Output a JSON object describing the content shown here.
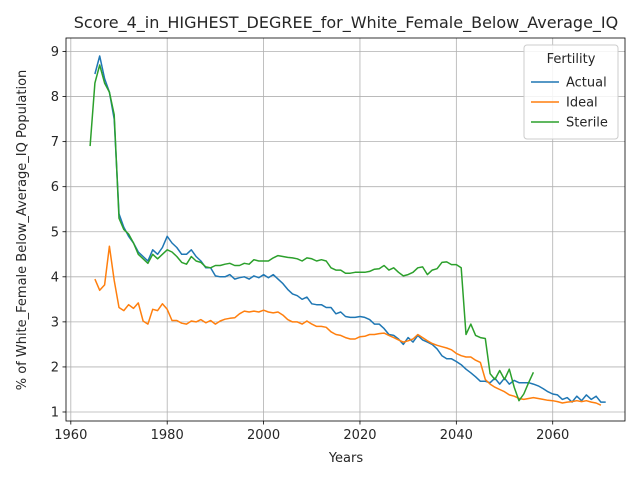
{
  "chart_data": {
    "type": "line",
    "title": "Score_4_in_HIGHEST_DEGREE_for_White_Female_Below_Average_IQ",
    "xlabel": "Years",
    "ylabel": "% of White_Female Below_Average_IQ Population",
    "xlim": [
      1959,
      2075
    ],
    "ylim": [
      0.8,
      9.3
    ],
    "xticks": [
      1960,
      1980,
      2000,
      2020,
      2040,
      2060
    ],
    "yticks": [
      1,
      2,
      3,
      4,
      5,
      6,
      7,
      8,
      9
    ],
    "grid": true,
    "legend": {
      "title": "Fertility",
      "position": "top-right"
    },
    "series": [
      {
        "name": "Actual",
        "color": "#1f77b4",
        "points": [
          [
            1965,
            8.5
          ],
          [
            1966,
            8.9
          ],
          [
            1967,
            8.4
          ],
          [
            1968,
            8.1
          ],
          [
            1969,
            7.5
          ],
          [
            1970,
            5.4
          ],
          [
            1971,
            5.1
          ],
          [
            1972,
            4.9
          ],
          [
            1973,
            4.75
          ],
          [
            1974,
            4.55
          ],
          [
            1975,
            4.45
          ],
          [
            1976,
            4.35
          ],
          [
            1977,
            4.6
          ],
          [
            1978,
            4.5
          ],
          [
            1979,
            4.65
          ],
          [
            1980,
            4.9
          ],
          [
            1981,
            4.75
          ],
          [
            1982,
            4.65
          ],
          [
            1983,
            4.5
          ],
          [
            1984,
            4.5
          ],
          [
            1985,
            4.6
          ],
          [
            1986,
            4.45
          ],
          [
            1987,
            4.35
          ],
          [
            1988,
            4.2
          ],
          [
            1989,
            4.2
          ],
          [
            1990,
            4.02
          ],
          [
            1991,
            4.0
          ],
          [
            1992,
            4.0
          ],
          [
            1993,
            4.05
          ],
          [
            1994,
            3.95
          ],
          [
            1995,
            3.98
          ],
          [
            1996,
            4.0
          ],
          [
            1997,
            3.95
          ],
          [
            1998,
            4.02
          ],
          [
            1999,
            3.98
          ],
          [
            2000,
            4.05
          ],
          [
            2001,
            3.98
          ],
          [
            2002,
            4.05
          ],
          [
            2003,
            3.95
          ],
          [
            2004,
            3.85
          ],
          [
            2005,
            3.72
          ],
          [
            2006,
            3.62
          ],
          [
            2007,
            3.58
          ],
          [
            2008,
            3.5
          ],
          [
            2009,
            3.55
          ],
          [
            2010,
            3.4
          ],
          [
            2011,
            3.38
          ],
          [
            2012,
            3.38
          ],
          [
            2013,
            3.32
          ],
          [
            2014,
            3.32
          ],
          [
            2015,
            3.18
          ],
          [
            2016,
            3.22
          ],
          [
            2017,
            3.12
          ],
          [
            2018,
            3.1
          ],
          [
            2019,
            3.1
          ],
          [
            2020,
            3.12
          ],
          [
            2021,
            3.1
          ],
          [
            2022,
            3.05
          ],
          [
            2023,
            2.95
          ],
          [
            2024,
            2.95
          ],
          [
            2025,
            2.85
          ],
          [
            2026,
            2.72
          ],
          [
            2027,
            2.7
          ],
          [
            2028,
            2.62
          ],
          [
            2029,
            2.5
          ],
          [
            2030,
            2.65
          ],
          [
            2031,
            2.55
          ],
          [
            2032,
            2.7
          ],
          [
            2033,
            2.6
          ],
          [
            2034,
            2.55
          ],
          [
            2035,
            2.5
          ],
          [
            2036,
            2.4
          ],
          [
            2037,
            2.25
          ],
          [
            2038,
            2.18
          ],
          [
            2039,
            2.18
          ],
          [
            2040,
            2.12
          ],
          [
            2041,
            2.05
          ],
          [
            2042,
            1.95
          ],
          [
            2043,
            1.87
          ],
          [
            2044,
            1.78
          ],
          [
            2045,
            1.68
          ],
          [
            2046,
            1.68
          ],
          [
            2047,
            1.65
          ],
          [
            2048,
            1.75
          ],
          [
            2049,
            1.62
          ],
          [
            2050,
            1.75
          ],
          [
            2051,
            1.62
          ],
          [
            2052,
            1.7
          ],
          [
            2053,
            1.65
          ],
          [
            2054,
            1.65
          ],
          [
            2055,
            1.65
          ],
          [
            2056,
            1.62
          ],
          [
            2057,
            1.58
          ],
          [
            2058,
            1.52
          ],
          [
            2059,
            1.45
          ],
          [
            2060,
            1.4
          ],
          [
            2061,
            1.38
          ],
          [
            2062,
            1.28
          ],
          [
            2063,
            1.32
          ],
          [
            2064,
            1.22
          ],
          [
            2065,
            1.35
          ],
          [
            2066,
            1.25
          ],
          [
            2067,
            1.38
          ],
          [
            2068,
            1.28
          ],
          [
            2069,
            1.35
          ],
          [
            2070,
            1.22
          ],
          [
            2071,
            1.22
          ]
        ]
      },
      {
        "name": "Ideal",
        "color": "#ff7f0e",
        "points": [
          [
            1965,
            3.95
          ],
          [
            1966,
            3.7
          ],
          [
            1967,
            3.82
          ],
          [
            1968,
            4.68
          ],
          [
            1969,
            3.92
          ],
          [
            1970,
            3.32
          ],
          [
            1971,
            3.25
          ],
          [
            1972,
            3.38
          ],
          [
            1973,
            3.3
          ],
          [
            1974,
            3.42
          ],
          [
            1975,
            3.02
          ],
          [
            1976,
            2.95
          ],
          [
            1977,
            3.28
          ],
          [
            1978,
            3.25
          ],
          [
            1979,
            3.4
          ],
          [
            1980,
            3.28
          ],
          [
            1981,
            3.03
          ],
          [
            1982,
            3.03
          ],
          [
            1983,
            2.97
          ],
          [
            1984,
            2.95
          ],
          [
            1985,
            3.02
          ],
          [
            1986,
            3.0
          ],
          [
            1987,
            3.05
          ],
          [
            1988,
            2.98
          ],
          [
            1989,
            3.03
          ],
          [
            1990,
            2.95
          ],
          [
            1991,
            3.02
          ],
          [
            1992,
            3.06
          ],
          [
            1993,
            3.08
          ],
          [
            1994,
            3.09
          ],
          [
            1995,
            3.18
          ],
          [
            1996,
            3.24
          ],
          [
            1997,
            3.22
          ],
          [
            1998,
            3.24
          ],
          [
            1999,
            3.22
          ],
          [
            2000,
            3.26
          ],
          [
            2001,
            3.22
          ],
          [
            2002,
            3.2
          ],
          [
            2003,
            3.22
          ],
          [
            2004,
            3.15
          ],
          [
            2005,
            3.05
          ],
          [
            2006,
            3.0
          ],
          [
            2007,
            3.0
          ],
          [
            2008,
            2.95
          ],
          [
            2009,
            3.02
          ],
          [
            2010,
            2.95
          ],
          [
            2011,
            2.9
          ],
          [
            2012,
            2.9
          ],
          [
            2013,
            2.88
          ],
          [
            2014,
            2.78
          ],
          [
            2015,
            2.72
          ],
          [
            2016,
            2.7
          ],
          [
            2017,
            2.65
          ],
          [
            2018,
            2.62
          ],
          [
            2019,
            2.62
          ],
          [
            2020,
            2.67
          ],
          [
            2021,
            2.68
          ],
          [
            2022,
            2.72
          ],
          [
            2023,
            2.72
          ],
          [
            2024,
            2.74
          ],
          [
            2025,
            2.75
          ],
          [
            2026,
            2.7
          ],
          [
            2027,
            2.65
          ],
          [
            2028,
            2.6
          ],
          [
            2029,
            2.55
          ],
          [
            2030,
            2.58
          ],
          [
            2031,
            2.62
          ],
          [
            2032,
            2.72
          ],
          [
            2033,
            2.65
          ],
          [
            2034,
            2.58
          ],
          [
            2035,
            2.52
          ],
          [
            2036,
            2.48
          ],
          [
            2037,
            2.45
          ],
          [
            2038,
            2.42
          ],
          [
            2039,
            2.38
          ],
          [
            2040,
            2.3
          ],
          [
            2041,
            2.25
          ],
          [
            2042,
            2.22
          ],
          [
            2043,
            2.22
          ],
          [
            2044,
            2.15
          ],
          [
            2045,
            2.1
          ],
          [
            2046,
            1.72
          ],
          [
            2047,
            1.62
          ],
          [
            2048,
            1.55
          ],
          [
            2049,
            1.5
          ],
          [
            2050,
            1.45
          ],
          [
            2051,
            1.38
          ],
          [
            2052,
            1.35
          ],
          [
            2053,
            1.3
          ],
          [
            2054,
            1.28
          ],
          [
            2055,
            1.3
          ],
          [
            2056,
            1.32
          ],
          [
            2057,
            1.3
          ],
          [
            2058,
            1.28
          ],
          [
            2059,
            1.26
          ],
          [
            2060,
            1.25
          ],
          [
            2061,
            1.23
          ],
          [
            2062,
            1.2
          ],
          [
            2063,
            1.22
          ],
          [
            2064,
            1.23
          ],
          [
            2065,
            1.25
          ],
          [
            2066,
            1.23
          ],
          [
            2067,
            1.25
          ],
          [
            2068,
            1.22
          ],
          [
            2069,
            1.2
          ],
          [
            2070,
            1.15
          ]
        ]
      },
      {
        "name": "Sterile",
        "color": "#2ca02c",
        "points": [
          [
            1964,
            6.9
          ],
          [
            1965,
            8.3
          ],
          [
            1966,
            8.7
          ],
          [
            1967,
            8.3
          ],
          [
            1968,
            8.1
          ],
          [
            1969,
            7.6
          ],
          [
            1970,
            5.3
          ],
          [
            1971,
            5.05
          ],
          [
            1972,
            4.95
          ],
          [
            1973,
            4.75
          ],
          [
            1974,
            4.5
          ],
          [
            1975,
            4.4
          ],
          [
            1976,
            4.3
          ],
          [
            1977,
            4.5
          ],
          [
            1978,
            4.4
          ],
          [
            1979,
            4.5
          ],
          [
            1980,
            4.6
          ],
          [
            1981,
            4.55
          ],
          [
            1982,
            4.45
          ],
          [
            1983,
            4.32
          ],
          [
            1984,
            4.28
          ],
          [
            1985,
            4.45
          ],
          [
            1986,
            4.35
          ],
          [
            1987,
            4.32
          ],
          [
            1988,
            4.22
          ],
          [
            1989,
            4.2
          ],
          [
            1990,
            4.25
          ],
          [
            1991,
            4.25
          ],
          [
            1992,
            4.28
          ],
          [
            1993,
            4.3
          ],
          [
            1994,
            4.25
          ],
          [
            1995,
            4.25
          ],
          [
            1996,
            4.3
          ],
          [
            1997,
            4.28
          ],
          [
            1998,
            4.38
          ],
          [
            1999,
            4.35
          ],
          [
            2000,
            4.35
          ],
          [
            2001,
            4.35
          ],
          [
            2002,
            4.42
          ],
          [
            2003,
            4.47
          ],
          [
            2004,
            4.45
          ],
          [
            2005,
            4.43
          ],
          [
            2006,
            4.42
          ],
          [
            2007,
            4.4
          ],
          [
            2008,
            4.35
          ],
          [
            2009,
            4.42
          ],
          [
            2010,
            4.4
          ],
          [
            2011,
            4.35
          ],
          [
            2012,
            4.38
          ],
          [
            2013,
            4.35
          ],
          [
            2014,
            4.2
          ],
          [
            2015,
            4.15
          ],
          [
            2016,
            4.15
          ],
          [
            2017,
            4.08
          ],
          [
            2018,
            4.08
          ],
          [
            2019,
            4.1
          ],
          [
            2020,
            4.1
          ],
          [
            2021,
            4.1
          ],
          [
            2022,
            4.12
          ],
          [
            2023,
            4.17
          ],
          [
            2024,
            4.18
          ],
          [
            2025,
            4.25
          ],
          [
            2026,
            4.15
          ],
          [
            2027,
            4.2
          ],
          [
            2028,
            4.1
          ],
          [
            2029,
            4.02
          ],
          [
            2030,
            4.05
          ],
          [
            2031,
            4.1
          ],
          [
            2032,
            4.2
          ],
          [
            2033,
            4.22
          ],
          [
            2034,
            4.05
          ],
          [
            2035,
            4.15
          ],
          [
            2036,
            4.18
          ],
          [
            2037,
            4.32
          ],
          [
            2038,
            4.33
          ],
          [
            2039,
            4.27
          ],
          [
            2040,
            4.27
          ],
          [
            2041,
            4.2
          ],
          [
            2042,
            2.72
          ],
          [
            2043,
            2.95
          ],
          [
            2044,
            2.7
          ],
          [
            2045,
            2.65
          ],
          [
            2046,
            2.63
          ],
          [
            2047,
            1.85
          ],
          [
            2048,
            1.72
          ],
          [
            2049,
            1.92
          ],
          [
            2050,
            1.72
          ],
          [
            2051,
            1.95
          ],
          [
            2052,
            1.55
          ],
          [
            2053,
            1.25
          ],
          [
            2054,
            1.4
          ],
          [
            2055,
            1.65
          ],
          [
            2056,
            1.88
          ]
        ]
      }
    ]
  }
}
